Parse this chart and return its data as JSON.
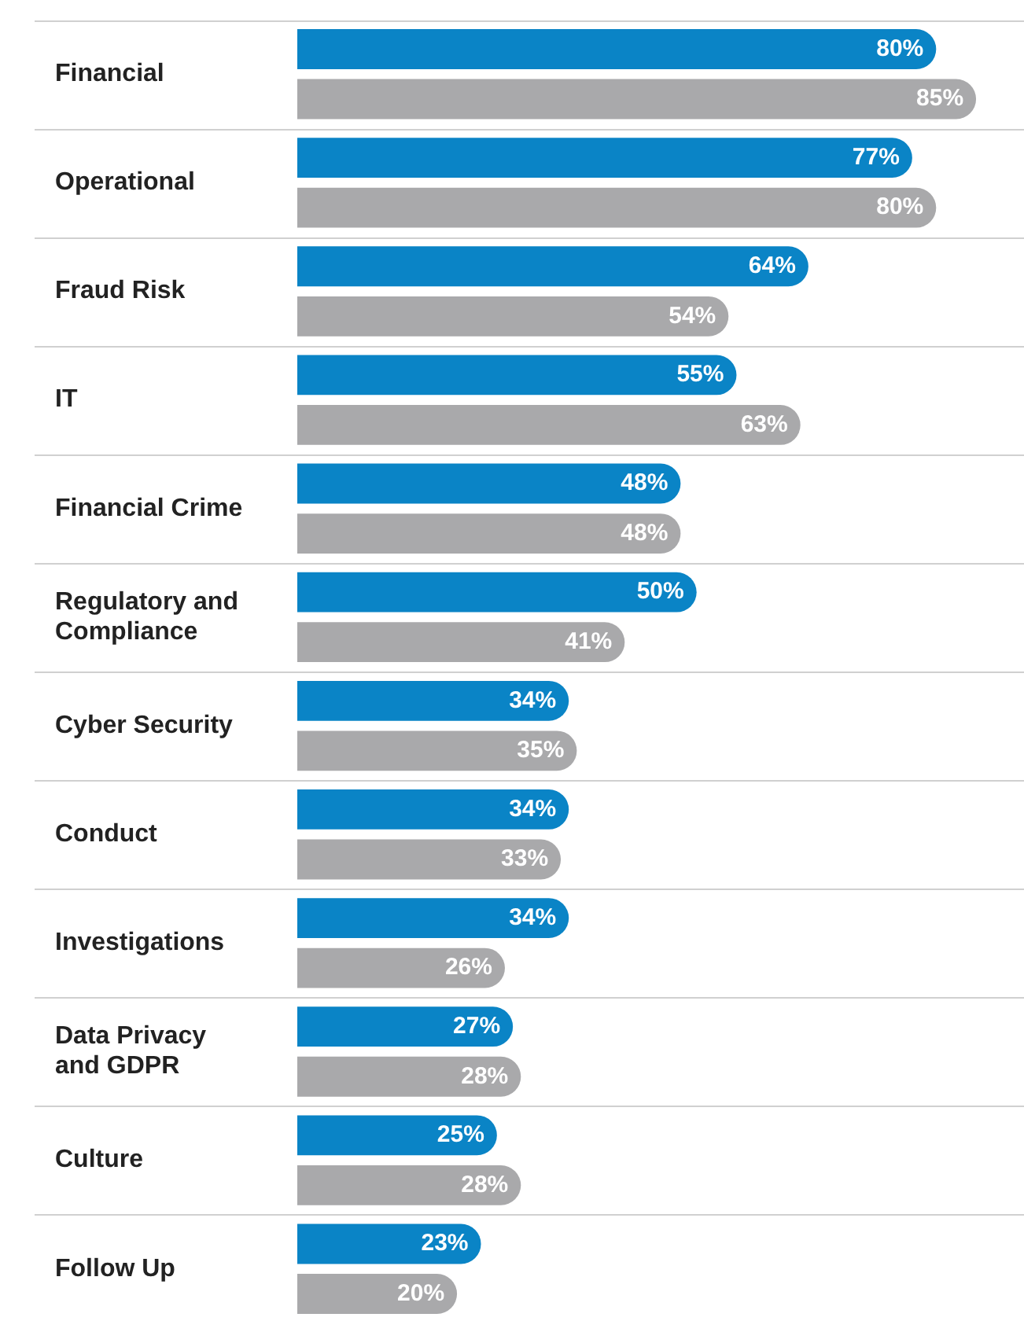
{
  "chart_data": {
    "type": "bar",
    "orientation": "horizontal",
    "grid": "y",
    "legend": false,
    "tick_labels": "y",
    "xlim": [
      0,
      91
    ],
    "categories": [
      "Financial",
      "Operational",
      "Fraud Risk",
      "IT",
      "Financial Crime",
      "Regulatory and Compliance",
      "Cyber Security",
      "Conduct",
      "Investigations",
      "Data Privacy and GDPR",
      "Culture",
      "Follow Up"
    ],
    "series": [
      {
        "color": "#0a84c6",
        "values": [
          80,
          77,
          64,
          55,
          48,
          50,
          34,
          34,
          34,
          27,
          25,
          23
        ],
        "value_labels": [
          "80%",
          "77%",
          "64%",
          "55%",
          "48%",
          "50%",
          "34%",
          "34%",
          "34%",
          "27%",
          "25%",
          "23%"
        ]
      },
      {
        "color": "#a9a9ab",
        "values": [
          85,
          80,
          54,
          63,
          48,
          41,
          35,
          33,
          26,
          28,
          28,
          20
        ],
        "value_labels": [
          "85%",
          "80%",
          "54%",
          "63%",
          "48%",
          "41%",
          "35%",
          "33%",
          "26%",
          "28%",
          "28%",
          "20%"
        ]
      }
    ]
  }
}
